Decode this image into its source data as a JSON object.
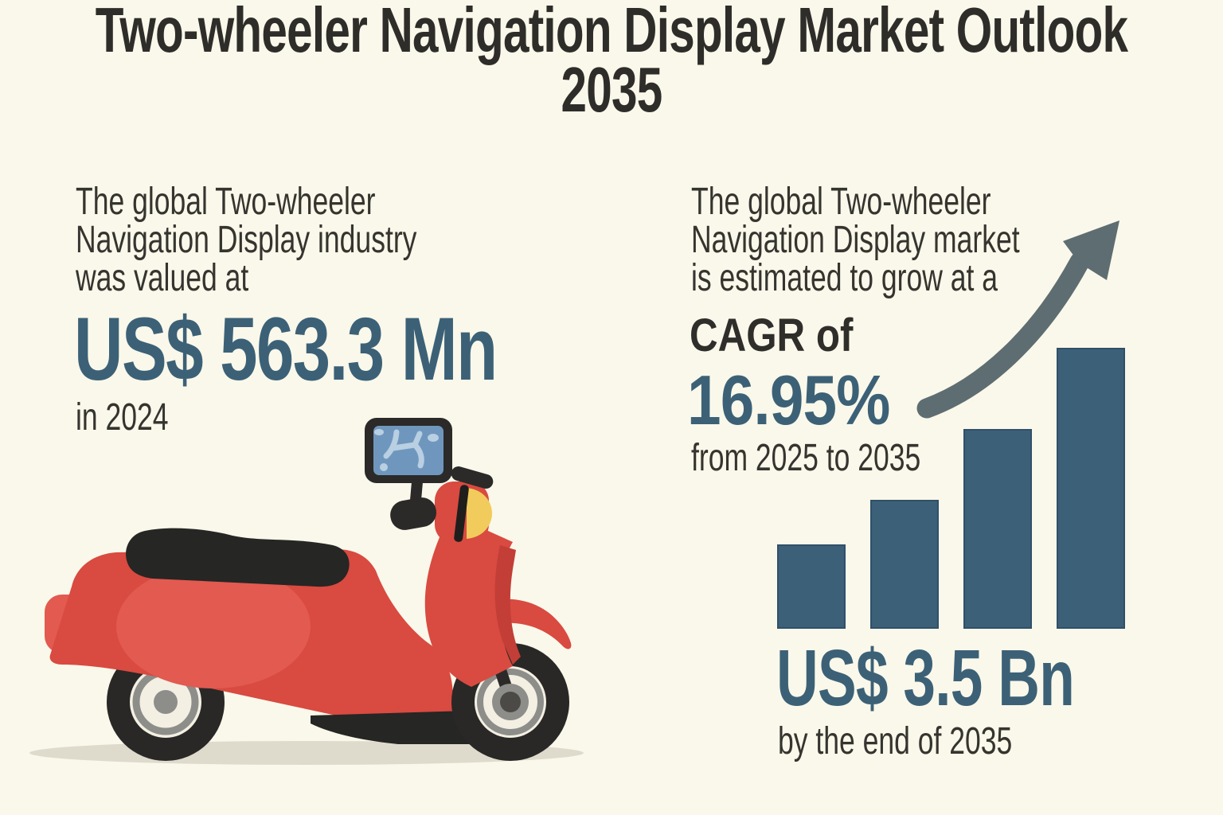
{
  "title": "Two-wheeler Navigation Display Market Outlook 2035",
  "left_stat": {
    "description": "The global Two-wheeler Navigation Display industry was valued at",
    "value": "US$ 563.3 Mn",
    "period": "in 2024"
  },
  "right_stat": {
    "description": "The global Two-wheeler Navigation Display market is estimated to grow at a",
    "label": "CAGR of",
    "value": "16.95%",
    "period": "from 2025 to 2035"
  },
  "projection": {
    "value": "US$ 3.5 Bn",
    "period": "by the end of 2035"
  },
  "icons": {
    "growth_arrow": "curved-up-right-arrow",
    "scooter": "red-scooter-with-handlebar-navigation-display"
  },
  "colors": {
    "background": "#faf8ea",
    "ink": "#2e2d29",
    "accent_blue": "#3c6177",
    "bar_fill": "#3d6079",
    "arrow_gray": "#5e6d71",
    "scooter_red": "#d94a40",
    "headlight_yellow": "#f1cb5b",
    "screen_blue": "#6f97be"
  },
  "chart_data": {
    "type": "bar",
    "title": "Two-wheeler Navigation Display market growth (illustrative ascending bars, unlabeled)",
    "categories": [
      "",
      "",
      "",
      ""
    ],
    "values_relative": [
      0.295,
      0.458,
      0.711,
      1.0
    ],
    "ylim": [
      0,
      1
    ],
    "grid": false,
    "legend": false,
    "xlabel": "",
    "ylabel": "",
    "annotations": {
      "base_value": "US$ 563.3 Mn in 2024",
      "cagr": "16.95% from 2025 to 2035",
      "projected_value": "US$ 3.5 Bn by the end of 2035"
    }
  }
}
